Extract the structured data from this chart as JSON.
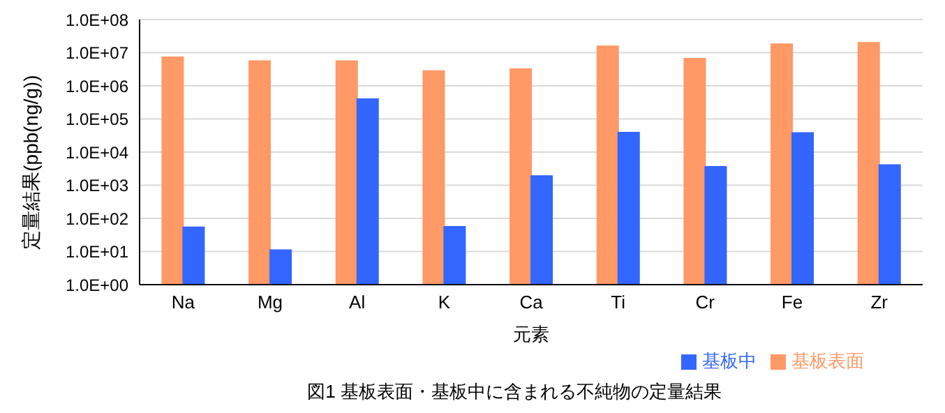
{
  "chart_data": {
    "type": "bar",
    "title": "図1  基板表面・基板中に含まれる不純物の定量結果",
    "xlabel": "元素",
    "ylabel": "定量結果(ppb(ng/g))",
    "categories": [
      "Na",
      "Mg",
      "Al",
      "K",
      "Ca",
      "Ti",
      "Cr",
      "Fe",
      "Zr"
    ],
    "series": [
      {
        "name": "基板表面",
        "color": "#ff9966",
        "values": [
          7300000,
          5600000,
          5600000,
          2800000,
          3200000,
          15600000,
          6600000,
          18000000,
          20000000
        ]
      },
      {
        "name": "基板中",
        "color": "#3366ff",
        "values": [
          54,
          11,
          400000,
          56,
          1900,
          39000,
          3600,
          38000,
          4100
        ]
      }
    ],
    "log": "y",
    "ylim": [
      1,
      100000000
    ],
    "yticks": [
      {
        "value": 1,
        "label": "1.0E+00"
      },
      {
        "value": 10,
        "label": "1.0E+01"
      },
      {
        "value": 100,
        "label": "1.0E+02"
      },
      {
        "value": 1000,
        "label": "1.0E+03"
      },
      {
        "value": 10000,
        "label": "1.0E+04"
      },
      {
        "value": 100000,
        "label": "1.0E+05"
      },
      {
        "value": 1000000,
        "label": "1.0E+06"
      },
      {
        "value": 10000000,
        "label": "1.0E+07"
      },
      {
        "value": 100000000,
        "label": "1.0E+08"
      }
    ],
    "grid": "y",
    "legend": "bottom right"
  }
}
